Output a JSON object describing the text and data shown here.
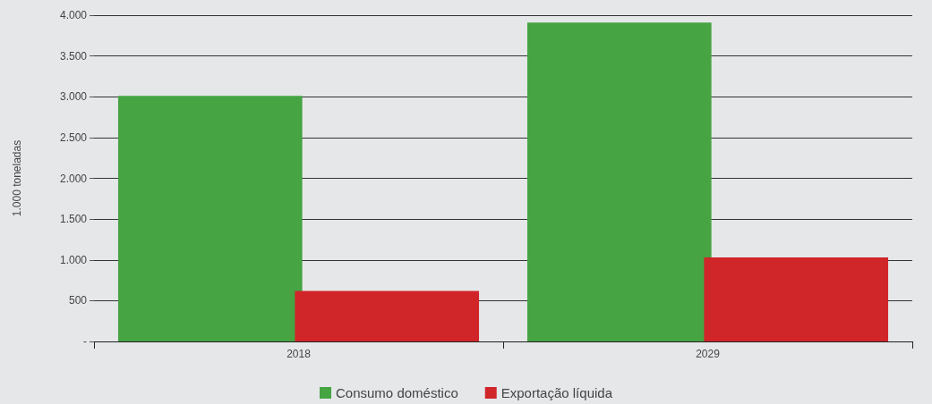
{
  "chart_data": {
    "type": "bar",
    "ylabel": "1.000 toneladas",
    "categories": [
      "2018",
      "2029"
    ],
    "series": [
      {
        "name": "Consumo doméstico",
        "color": "#46a443",
        "values": [
          3010,
          3910
        ]
      },
      {
        "name": "Exportação líquida",
        "color": "#d0262a",
        "values": [
          620,
          1030
        ]
      }
    ],
    "ylim": [
      0,
      4000
    ],
    "yticks": [
      {
        "value": 0,
        "label": "-"
      },
      {
        "value": 500,
        "label": "500"
      },
      {
        "value": 1000,
        "label": "1.000"
      },
      {
        "value": 1500,
        "label": "1.500"
      },
      {
        "value": 2000,
        "label": "2.000"
      },
      {
        "value": 2500,
        "label": "2.500"
      },
      {
        "value": 3000,
        "label": "3.000"
      },
      {
        "value": 3500,
        "label": "3.500"
      },
      {
        "value": 4000,
        "label": "4.000"
      }
    ],
    "grid": "y",
    "legend": "bottom"
  }
}
